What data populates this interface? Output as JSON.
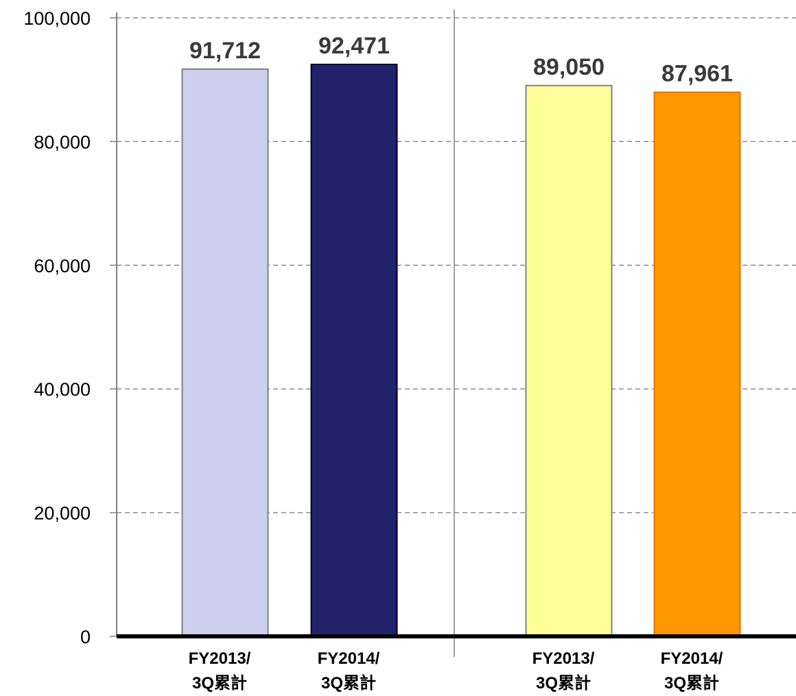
{
  "chart_data": {
    "type": "bar",
    "title": "",
    "xlabel": "",
    "ylabel": "",
    "ylim": [
      0,
      100000
    ],
    "yticks": [
      0,
      20000,
      40000,
      60000,
      80000,
      100000
    ],
    "ytick_labels": [
      "0",
      "20,000",
      "40,000",
      "60,000",
      "80,000",
      "100,000"
    ],
    "grid": "horizontal dashed",
    "legend": "none",
    "groups": [
      {
        "bars": [
          {
            "category": [
              "FY2013/",
              "3Q累計"
            ],
            "value": 91712,
            "value_label": "91,712",
            "color": "#cecfee",
            "stroke": "#808080"
          },
          {
            "category": [
              "FY2014/",
              "3Q累計"
            ],
            "value": 92471,
            "value_label": "92,471",
            "color": "#22226a",
            "stroke": "#000033"
          }
        ]
      },
      {
        "bars": [
          {
            "category": [
              "FY2013/",
              "3Q累計"
            ],
            "value": 89050,
            "value_label": "89,050",
            "color": "#ffff99",
            "stroke": "#808080"
          },
          {
            "category": [
              "FY2014/",
              "3Q累計"
            ],
            "value": 87961,
            "value_label": "87,961",
            "color": "#ff9900",
            "stroke": "#e07000"
          }
        ]
      }
    ]
  }
}
